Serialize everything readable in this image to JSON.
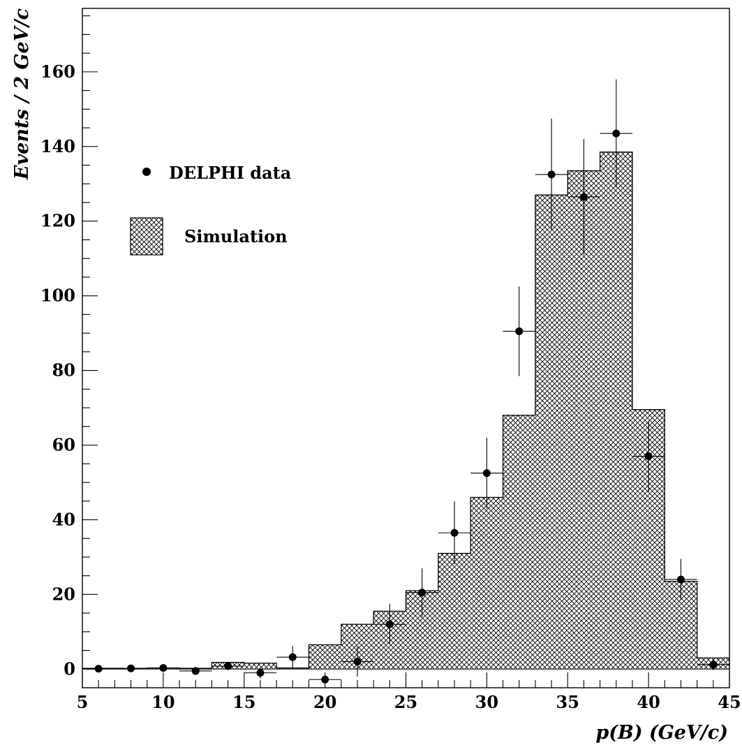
{
  "chart_data": {
    "type": "bar",
    "xlabel": "p(B) (GeV/c)",
    "ylabel": "Events / 2 GeV/c",
    "xlim": [
      5,
      45
    ],
    "ylim": [
      -5,
      177
    ],
    "xticks": [
      5,
      10,
      15,
      20,
      25,
      30,
      35,
      40,
      45
    ],
    "yticks": [
      0,
      20,
      40,
      60,
      80,
      100,
      120,
      140,
      160
    ],
    "legend": {
      "placement": "upper-left",
      "entries": [
        {
          "label": "DELPHI data",
          "marker": "dot"
        },
        {
          "label": "Simulation",
          "marker": "hatched-box"
        }
      ]
    },
    "series": [
      {
        "name": "Simulation",
        "style": "cross-hatched histogram",
        "bins": [
          {
            "low": 5,
            "high": 7,
            "value": 0.2
          },
          {
            "low": 7,
            "high": 9,
            "value": 0.2
          },
          {
            "low": 9,
            "high": 11,
            "value": 0.3
          },
          {
            "low": 11,
            "high": 13,
            "value": 0.2
          },
          {
            "low": 13,
            "high": 15,
            "value": 1.8
          },
          {
            "low": 15,
            "high": 17,
            "value": 1.6
          },
          {
            "low": 17,
            "high": 19,
            "value": 0.3
          },
          {
            "low": 19,
            "high": 21,
            "value": 6.5
          },
          {
            "low": 21,
            "high": 23,
            "value": 12
          },
          {
            "low": 23,
            "high": 25,
            "value": 15.5
          },
          {
            "low": 25,
            "high": 27,
            "value": 21
          },
          {
            "low": 27,
            "high": 29,
            "value": 31
          },
          {
            "low": 29,
            "high": 31,
            "value": 46
          },
          {
            "low": 31,
            "high": 33,
            "value": 68
          },
          {
            "low": 33,
            "high": 35,
            "value": 127
          },
          {
            "low": 35,
            "high": 37,
            "value": 133.5
          },
          {
            "low": 37,
            "high": 39,
            "value": 138.5
          },
          {
            "low": 39,
            "high": 41,
            "value": 69.5
          },
          {
            "low": 41,
            "high": 43,
            "value": 23.5
          },
          {
            "low": 43,
            "high": 45,
            "value": 3
          }
        ]
      },
      {
        "name": "DELPHI data",
        "style": "points with error bars",
        "points": [
          {
            "x": 6,
            "y": 0.1,
            "err": 0.3
          },
          {
            "x": 8,
            "y": 0.2,
            "err": 0.4
          },
          {
            "x": 10,
            "y": 0.3,
            "err": 0.5
          },
          {
            "x": 12,
            "y": -0.5,
            "err": 0.5
          },
          {
            "x": 14,
            "y": 0.8,
            "err": 1
          },
          {
            "x": 16,
            "y": -1,
            "err": 1.5
          },
          {
            "x": 18,
            "y": 3.2,
            "err": 3
          },
          {
            "x": 20,
            "y": -2.8,
            "err": 1
          },
          {
            "x": 22,
            "y": 2,
            "err": 4
          },
          {
            "x": 24,
            "y": 12,
            "err": 5.5
          },
          {
            "x": 26,
            "y": 20.5,
            "err": 6.5
          },
          {
            "x": 28,
            "y": 36.5,
            "err": 8.5
          },
          {
            "x": 30,
            "y": 52.5,
            "err": 9.5
          },
          {
            "x": 32,
            "y": 90.5,
            "err": 12
          },
          {
            "x": 34,
            "y": 132.5,
            "err": 15
          },
          {
            "x": 36,
            "y": 126.5,
            "err": 15.5
          },
          {
            "x": 38,
            "y": 143.5,
            "err": 14.5
          },
          {
            "x": 40,
            "y": 57,
            "err": 9.5
          },
          {
            "x": 42,
            "y": 24,
            "err": 5.5
          },
          {
            "x": 44,
            "y": 1.2,
            "err": 1.5
          }
        ]
      }
    ]
  }
}
